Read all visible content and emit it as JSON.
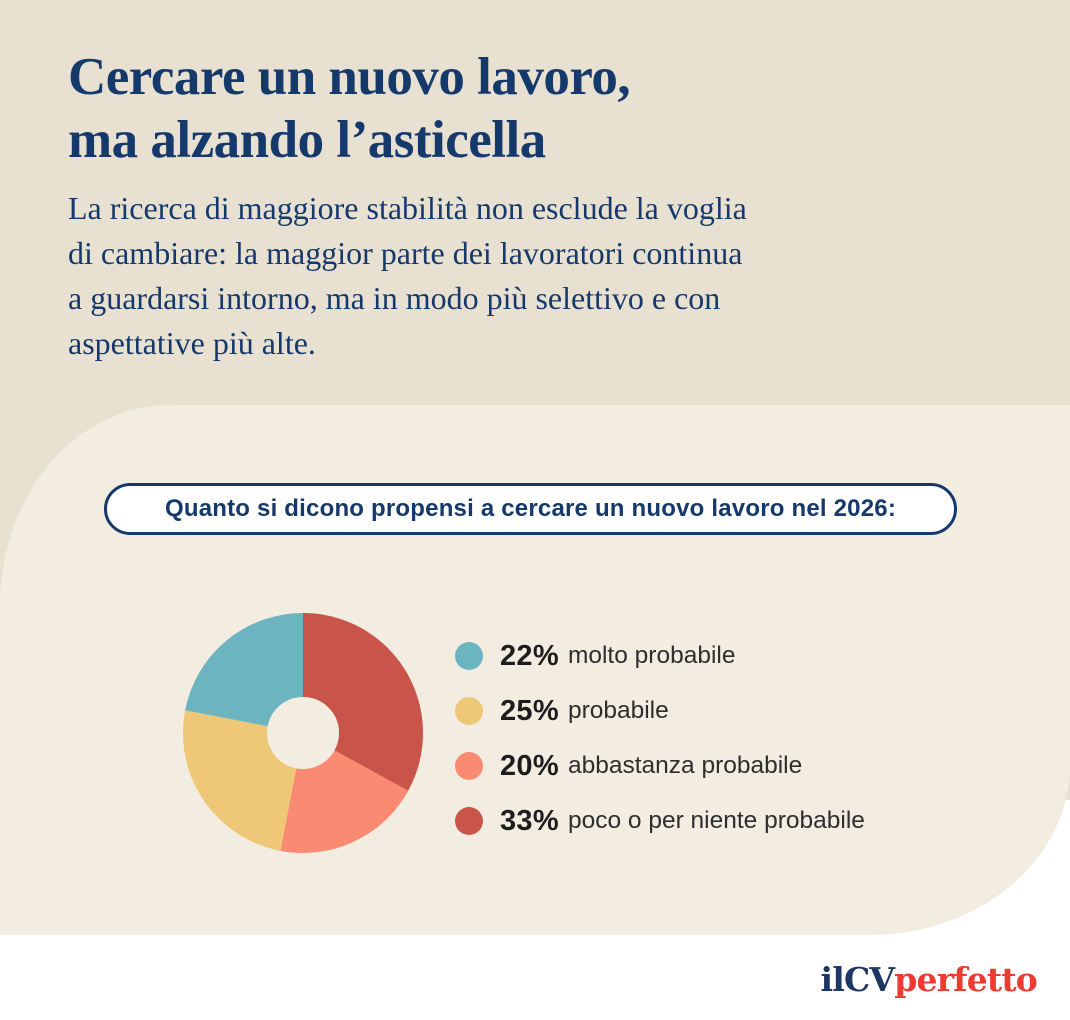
{
  "header": {
    "title_line1": "Cercare un nuovo lavoro,",
    "title_line2": "ma alzando l’asticella",
    "intro_lines": [
      "La ricerca di maggiore stabilità non esclude la voglia",
      "di cambiare: la maggior parte dei lavoratori continua",
      "a guardarsi intorno, ma in modo più selettivo e con",
      "aspettative più alte."
    ]
  },
  "question_badge": {
    "text": "Quanto si dicono propensi a cercare un nuovo lavoro nel 2026:"
  },
  "chart_data": {
    "type": "pie",
    "variant": "donut",
    "title": "Quanto si dicono propensi a cercare un nuovo lavoro nel 2026:",
    "unit": "%",
    "segments": [
      {
        "label": "molto probabile",
        "value": 22,
        "color": "#6cb4bf"
      },
      {
        "label": "probabile",
        "value": 25,
        "color": "#eec877"
      },
      {
        "label": "abbastanza probabile",
        "value": 20,
        "color": "#fb8a73"
      },
      {
        "label": "poco o per niente probabile",
        "value": 33,
        "color": "#c9554a"
      }
    ],
    "clockwise_order_from_top": [
      "poco o per niente probabile",
      "abbastanza probabile",
      "probabile",
      "molto probabile"
    ],
    "inner_radius_ratio": 0.3,
    "hole_color": "#f2ece1",
    "legend_position": "right"
  },
  "branding": {
    "prefix": "ilCV",
    "suffix": "perfetto"
  },
  "colors": {
    "header_background": "#e8e1d2",
    "panel_background": "#f2ece1",
    "navy_text": "#16396b",
    "badge_border": "#15396b",
    "legend_value_text": "#1d1d1d",
    "legend_label_text": "#2e2e2e",
    "logo_navy": "#1d3765",
    "logo_red": "#ee3a31"
  }
}
